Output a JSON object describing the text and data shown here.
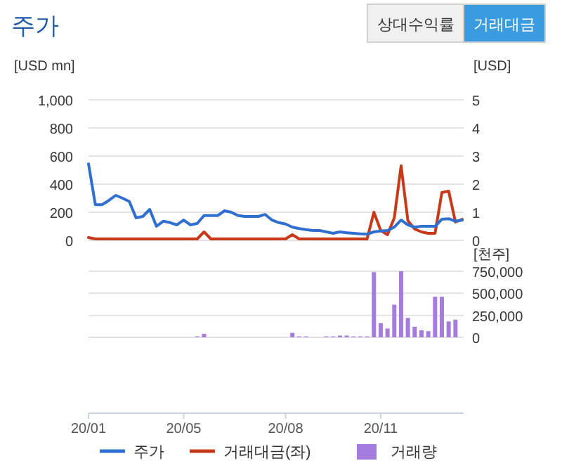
{
  "chart_data": [
    {
      "type": "line",
      "title": "주가",
      "annotations": [
        "상대수익률",
        "거래대금"
      ],
      "ylabel": "[USD mn]",
      "y2label": "[USD]",
      "series": [
        {
          "name": "주가",
          "color": "#2f6fd0",
          "axis": "y2",
          "values": [
            2.72,
            1.27,
            1.27,
            1.42,
            1.6,
            1.5,
            1.38,
            0.8,
            0.85,
            1.1,
            0.5,
            0.68,
            0.63,
            0.55,
            0.72,
            0.55,
            0.6,
            0.88,
            0.88,
            0.88,
            1.05,
            1.0,
            0.88,
            0.85,
            0.85,
            0.85,
            0.92,
            0.72,
            0.63,
            0.58,
            0.47,
            0.42,
            0.38,
            0.35,
            0.35,
            0.3,
            0.25,
            0.3,
            0.27,
            0.25,
            0.23,
            0.22,
            0.3,
            0.33,
            0.35,
            0.47,
            0.72,
            0.55,
            0.47,
            0.5,
            0.5,
            0.5,
            0.75,
            0.77,
            0.68,
            0.72
          ]
        },
        {
          "name": "거래대금(좌)",
          "color": "#c8391a",
          "values": [
            20,
            10,
            10,
            10,
            10,
            10,
            10,
            10,
            10,
            10,
            10,
            10,
            10,
            10,
            10,
            10,
            10,
            60,
            10,
            10,
            10,
            10,
            10,
            10,
            10,
            10,
            10,
            10,
            10,
            10,
            40,
            10,
            10,
            10,
            10,
            10,
            10,
            10,
            10,
            10,
            10,
            10,
            200,
            70,
            40,
            160,
            530,
            140,
            80,
            60,
            50,
            50,
            340,
            350,
            130,
            150
          ]
        }
      ],
      "ylim": [
        0,
        1000
      ],
      "yticks": [
        0,
        200,
        400,
        600,
        800,
        {
          "value": 1000,
          "label": "1,000"
        }
      ],
      "y2lim": [
        0,
        5
      ],
      "y2ticks": [
        0,
        1,
        2,
        3,
        4,
        5
      ],
      "grid": "y",
      "tick_labels": "y",
      "legend": "bottom",
      "line_style": "solid"
    },
    {
      "type": "bar",
      "y2label": "[천주]",
      "categories": [
        "20/01",
        null,
        null,
        null,
        null,
        null,
        null,
        null,
        null,
        null,
        null,
        null,
        null,
        null,
        "20/05",
        null,
        null,
        null,
        null,
        null,
        null,
        null,
        null,
        null,
        null,
        null,
        null,
        null,
        null,
        "20/08",
        null,
        null,
        null,
        null,
        null,
        null,
        null,
        null,
        null,
        null,
        null,
        null,
        null,
        "20/11",
        null,
        null,
        null,
        null,
        null,
        null,
        null,
        null,
        null,
        null,
        null,
        null
      ],
      "series": [
        {
          "name": "거래량",
          "color": "#a57be0",
          "axis": "y2",
          "values": [
            null,
            null,
            null,
            null,
            null,
            null,
            null,
            null,
            null,
            null,
            null,
            null,
            null,
            null,
            null,
            null,
            10000,
            40000,
            null,
            null,
            null,
            null,
            null,
            null,
            null,
            null,
            null,
            null,
            null,
            null,
            50000,
            10000,
            10000,
            null,
            null,
            10000,
            10000,
            20000,
            20000,
            10000,
            10000,
            10000,
            740000,
            160000,
            100000,
            370000,
            750000,
            220000,
            120000,
            80000,
            70000,
            460000,
            460000,
            180000,
            200000,
            null
          ]
        }
      ],
      "y2lim": [
        0,
        750000
      ],
      "y2ticks": [
        0,
        {
          "value": 250000,
          "label": "250,000"
        },
        {
          "value": 500000,
          "label": "500,000"
        },
        {
          "value": 750000,
          "label": "750,000"
        }
      ],
      "grid": "y",
      "legend": "bottom"
    }
  ]
}
